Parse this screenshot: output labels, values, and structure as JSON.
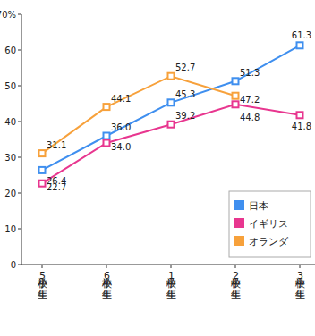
{
  "chart_data": {
    "type": "line",
    "categories": [
      "小学校5年生",
      "小学校6年生",
      "中学校1年生",
      "中学校2年生",
      "中学校3年生"
    ],
    "series": [
      {
        "name": "日本",
        "color": "#3f8fef",
        "values": [
          26.4,
          36.0,
          45.3,
          51.3,
          61.3
        ],
        "value_labels": [
          "26.4",
          "36.0",
          "45.3",
          "51.3",
          "61.3"
        ]
      },
      {
        "name": "イギリス",
        "color": "#e8368f",
        "values": [
          22.7,
          34.0,
          39.2,
          44.8,
          41.8
        ],
        "value_labels": [
          "22.7",
          "34.0",
          "39.2",
          "44.8",
          "41.8"
        ]
      },
      {
        "name": "オランダ",
        "color": "#f7a13b",
        "values": [
          31.1,
          44.1,
          52.7,
          47.2,
          null
        ],
        "value_labels": [
          "31.1",
          "44.1",
          "52.7",
          "47.2",
          null
        ]
      }
    ],
    "ylim": [
      0,
      70
    ],
    "yticks": [
      0,
      10,
      20,
      30,
      40,
      50,
      60,
      {
        "value": 70,
        "label": "70%"
      }
    ],
    "grid": false,
    "legend": "lower right",
    "marker": "square",
    "data_labels": true
  }
}
